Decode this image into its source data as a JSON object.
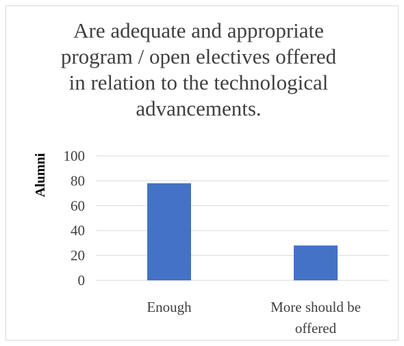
{
  "chart_data": {
    "type": "bar",
    "title": "Are adequate and appropriate program / open electives  offered in relation  to the technological advancements.",
    "title_lines": [
      "Are adequate and appropriate",
      "program / open electives  offered",
      "in relation  to the technological",
      "advancements."
    ],
    "categories": [
      "Enough",
      "More should be offered"
    ],
    "category_lines": [
      [
        "Enough"
      ],
      [
        "More should be",
        "offered"
      ]
    ],
    "values": [
      78,
      28
    ],
    "ylabel": "Alumni",
    "xlabel": "",
    "ylim": [
      0,
      100
    ],
    "yticks": [
      0,
      20,
      40,
      60,
      80,
      100
    ],
    "bar_color": "#4472c4",
    "grid": true,
    "gridline_color": "#d9d9d9",
    "legend": "none"
  }
}
